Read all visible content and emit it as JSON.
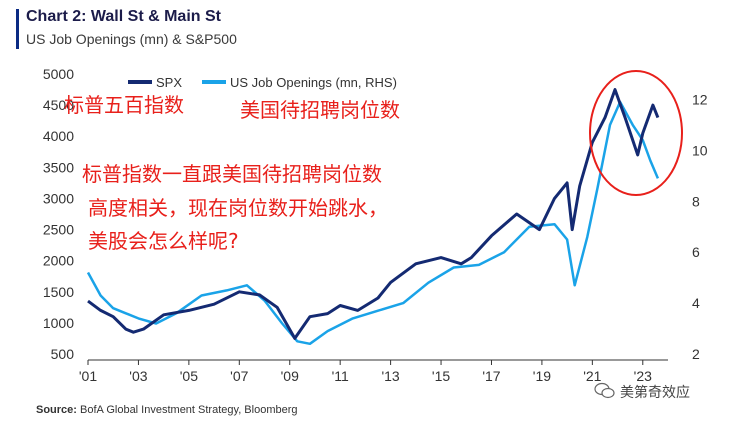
{
  "header": {
    "title": "Chart 2: Wall St & Main St",
    "subtitle": "US Job Openings (mn) & S&P500"
  },
  "source": {
    "label": "Source:",
    "text": "BofA Global Investment Strategy, Bloomberg"
  },
  "watermark": {
    "text": "美第奇效应",
    "icon": "wechat-icon"
  },
  "annotations": {
    "spx_label": "标普五百指数",
    "jobs_label": "美国待招聘岗位数",
    "comment_line1": "标普指数一直跟美国待招聘岗位数",
    "comment_line2": "高度相关，现在岗位数开始跳水，",
    "comment_line3": "美股会怎么样呢?"
  },
  "colors": {
    "spx": "#142a72",
    "jobs": "#1aa3e8",
    "annotation": "#e8201b",
    "circle": "#e8201b"
  },
  "chart_data": {
    "type": "line",
    "title": "Chart 2: Wall St & Main St",
    "subtitle": "US Job Openings (mn) & S&P500",
    "legend": {
      "placement": "top-left",
      "entries": [
        "SPX",
        "US Job Openings (mn, RHS)"
      ]
    },
    "x_tick_labels": [
      "'01",
      "'03",
      "'05",
      "'07",
      "'09",
      "'11",
      "'13",
      "'15",
      "'17",
      "'19",
      "'21",
      "'23"
    ],
    "x_range": [
      2001,
      2024
    ],
    "y_left": {
      "ticks": [
        500,
        1000,
        1500,
        2000,
        2500,
        3000,
        3500,
        4000,
        4500,
        5000
      ],
      "range": [
        500,
        5000
      ]
    },
    "y_right": {
      "ticks": [
        2,
        4,
        6,
        8,
        10,
        12
      ],
      "range": [
        2,
        13
      ]
    },
    "grid": false,
    "series": [
      {
        "name": "SPX",
        "axis": "left",
        "x": [
          2001,
          2001.5,
          2002,
          2002.5,
          2002.8,
          2003.2,
          2004,
          2005,
          2006,
          2007,
          2007.8,
          2008.5,
          2009.2,
          2009.8,
          2010.5,
          2011,
          2011.7,
          2012.5,
          2013,
          2014,
          2015,
          2015.8,
          2016.2,
          2017,
          2018,
          2018.9,
          2019.5,
          2020,
          2020.2,
          2020.5,
          2021,
          2021.5,
          2021.9,
          2022.3,
          2022.8,
          2023,
          2023.4,
          2023.6
        ],
        "values": [
          1350,
          1200,
          1100,
          900,
          850,
          900,
          1130,
          1200,
          1300,
          1500,
          1450,
          1250,
          750,
          1100,
          1150,
          1280,
          1200,
          1400,
          1650,
          1950,
          2050,
          1950,
          2050,
          2400,
          2750,
          2500,
          3000,
          3250,
          2500,
          3200,
          3900,
          4300,
          4750,
          4300,
          3700,
          4050,
          4500,
          4300
        ]
      },
      {
        "name": "US Job Openings (mn, RHS)",
        "axis": "right",
        "x": [
          2001,
          2001.5,
          2002,
          2002.5,
          2003,
          2003.7,
          2004.5,
          2005.5,
          2006.5,
          2007.3,
          2008,
          2008.7,
          2009.3,
          2009.8,
          2010.5,
          2011.5,
          2012.5,
          2013.5,
          2014.5,
          2015.5,
          2016.5,
          2017.5,
          2018.5,
          2019.5,
          2020,
          2020.3,
          2020.8,
          2021.2,
          2021.7,
          2022.1,
          2022.6,
          2023,
          2023.3,
          2023.6
        ],
        "values": [
          5.2,
          4.3,
          3.8,
          3.6,
          3.4,
          3.2,
          3.6,
          4.3,
          4.5,
          4.7,
          4.1,
          3.2,
          2.5,
          2.4,
          2.9,
          3.4,
          3.7,
          4.0,
          4.8,
          5.4,
          5.5,
          6.0,
          7.0,
          7.1,
          6.5,
          4.7,
          6.6,
          8.5,
          11.0,
          11.9,
          11.0,
          10.4,
          9.6,
          8.9
        ]
      }
    ]
  }
}
